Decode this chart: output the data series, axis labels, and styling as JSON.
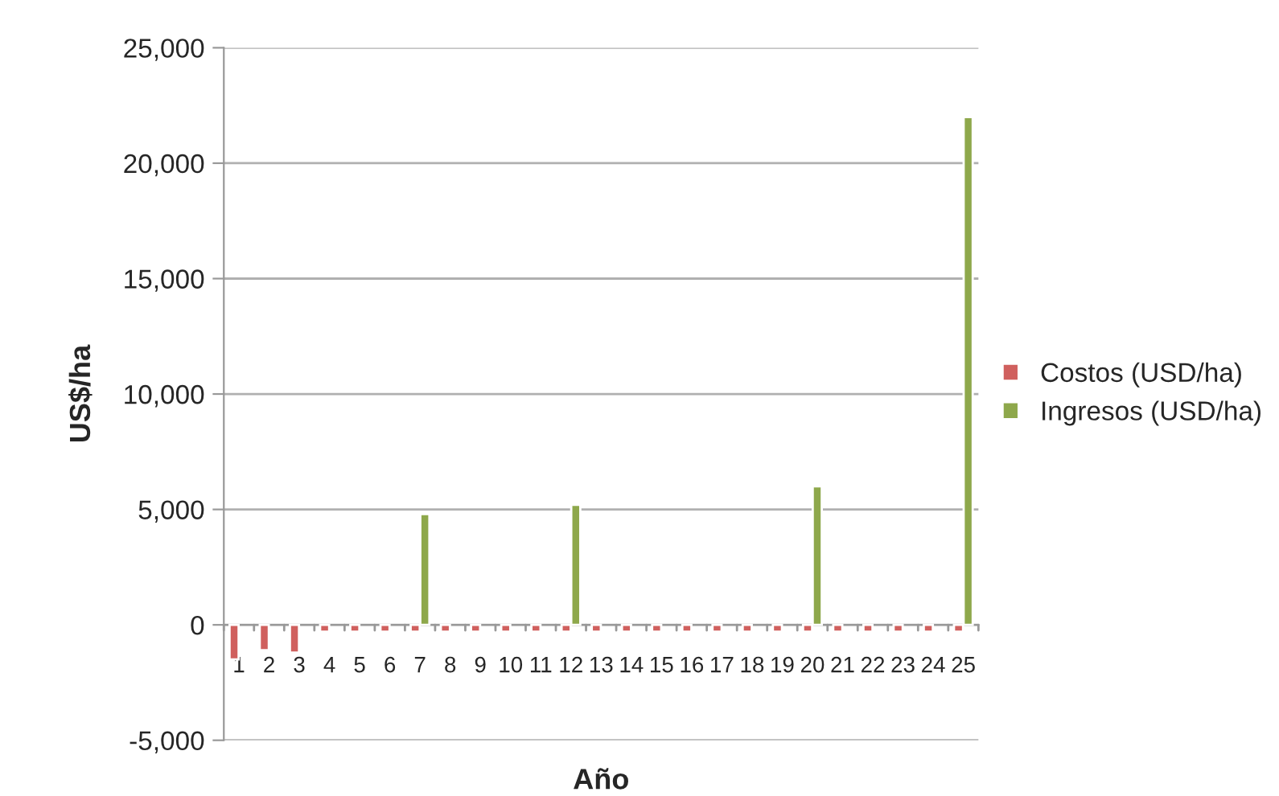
{
  "chart_data": {
    "type": "bar",
    "xlabel": "Año",
    "ylabel": "US$/ha",
    "categories": [
      "1",
      "2",
      "3",
      "4",
      "5",
      "6",
      "7",
      "8",
      "9",
      "10",
      "11",
      "12",
      "13",
      "14",
      "15",
      "16",
      "17",
      "18",
      "19",
      "20",
      "21",
      "22",
      "23",
      "24",
      "25"
    ],
    "series": [
      {
        "name": "Costos (USD/ha)",
        "color": "#d0605e",
        "values": [
          -1500,
          -1100,
          -1200,
          -300,
          -300,
          -300,
          -300,
          -300,
          -300,
          -300,
          -300,
          -300,
          -300,
          -300,
          -300,
          -300,
          -300,
          -300,
          -300,
          -300,
          -300,
          -300,
          -300,
          -300,
          -300
        ]
      },
      {
        "name": "Ingresos (USD/ha)",
        "color": "#8ea84b",
        "values": [
          null,
          null,
          null,
          null,
          null,
          null,
          4800,
          null,
          null,
          null,
          null,
          5200,
          null,
          null,
          null,
          null,
          null,
          null,
          null,
          6000,
          null,
          null,
          null,
          null,
          22000
        ]
      }
    ],
    "ylim": [
      -5000,
      25000
    ],
    "yticks": [
      {
        "value": -5000,
        "label": "-5,000"
      },
      {
        "value": 0,
        "label": "0"
      },
      {
        "value": 5000,
        "label": "5,000"
      },
      {
        "value": 10000,
        "label": "10,000"
      },
      {
        "value": 15000,
        "label": "15,000"
      },
      {
        "value": 20000,
        "label": "20,000"
      },
      {
        "value": 25000,
        "label": "25,000"
      }
    ],
    "grid": "y",
    "legend": "right"
  }
}
